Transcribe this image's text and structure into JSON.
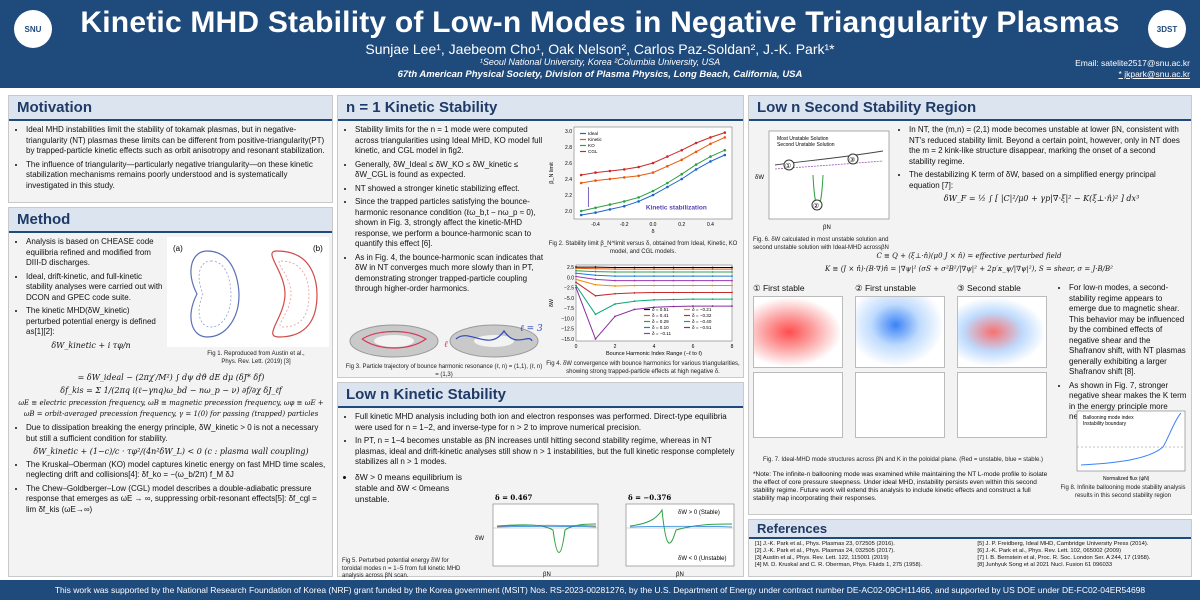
{
  "header": {
    "title": "Kinetic MHD Stability of Low-n Modes in Negative Triangularity Plasmas",
    "authors": "Sunjae Lee¹, Jaebeom Cho¹, Oak Nelson², Carlos Paz-Soldan², J.-K. Park¹*",
    "affiliations": "¹Seoul National University, Korea ²Columbia University, USA",
    "conference": "67th American Physical Society, Division of Plasma Physics, Long Beach, California, USA",
    "email_1": "Email: satelite2517@snu.ac.kr",
    "email_2": "* jkpark@snu.ac.kr",
    "right_logo": "3DST"
  },
  "motivation": {
    "title": "Motivation",
    "bullets": [
      "Ideal MHD instabilities limit the stability of tokamak plasmas, but in negative-triangularity (NT) plasmas these limits can be different from positive-triangularity(PT) by trapped-particle kinetic effects such as orbit anisotropy and resonant stabilization.",
      "The influence of triangularity—particularly negative triangularity—on these kinetic stabilization mechanisms remains poorly understood and is systematically investigated in this study."
    ]
  },
  "method": {
    "title": "Method",
    "bullets": [
      "Analysis is based on CHEASE code equilibria refined and modified from DIII-D discharges.",
      "Ideal, drift-kinetic, and full-kinetic stability analyses were carried out with DCON and GPEC code suite.",
      "The kinetic MHD(δW_kinetic) perturbed potential energy is defined as[1][2]:"
    ],
    "eq_1": "δW_kinetic + i τφ/n",
    "eq_2": "= δW_ideal − (2πχ′/M²) ∫ dψ dϑ dE dμ (δJ* δf)",
    "eq_3": "δf_kis = Σ 1/(2πq i(ℓ−γnq)ω_bd − nω_p − ν) ∂f/∂χ δJ_ℓf",
    "eq_4": "ωE ≡ electric precession frequency, ωB ≡ magnetic precession frequency, ωφ ≡ ωE + ωB = orbit-averaged precession frequency, γ = 1(0) for passing (trapped) particles",
    "bullet_4": "Due to dissipation breaking the energy principle, δW_kinetic > 0 is not a necessary but still a sufficient condition for stability.",
    "eq_5": "δW_kinetic + (1−c)/c · τφ²/(4n²δW_L) < 0 (c : plasma wall coupling)",
    "bullet_5": "The Kruskal–Oberman (KO) model captures kinetic energy on fast MHD time scales, neglecting drift and collisions[4]: δf_ko = −(ω_b/2π) f_M δJ",
    "bullet_6": "The Chew–Goldberger–Low (CGL) model describes a double-adiabatic pressure response that emerges as ωE → ∞, suppressing orbit-resonant effects[5]: δf_cgl = lim δf_kis (ωE→∞)",
    "fig1_a": "(a)",
    "fig1_b": "(b)",
    "fig1_caption": "Fig 1. Reproduced from Austin et al., Phys. Rev. Lett. (2019) [3]"
  },
  "n1": {
    "title": "n = 1 Kinetic Stability",
    "bullets": [
      "Stability limits for the n = 1 mode were computed across triangularities using Ideal MHD, KO model full kinetic, and CGL model in fig2.",
      "Generally, δW_Ideal ≤ δW_KO ≤ δW_kinetic ≤ δW_CGL is found as expected.",
      "NT showed a stronger kinetic stabilizing effect.",
      "Since the trapped particles satisfying the bounce-harmonic resonance condition (ℓω_b,t − nω_p ≈ 0), shown in Fig. 3, strongly affect the kinetic-MHD response, we perform a bounce-harmonic scan to quantify this effect [6].",
      "As in Fig. 4, the bounce-harmonic scan indicates that δW in NT converges much more slowly than in PT, demonstrating stronger trapped-particle coupling through higher-order harmonics."
    ],
    "fig2_caption": "Fig 2. Stability limit β_N^limit versus δ, obtained from Ideal, Kinetic, KO model, and CGL models.",
    "fig2_annotation": "Kinetic stabilization",
    "fig2_ylabel": "β_N limit",
    "fig2_xlabel": "δ",
    "fig3_label_left": "ℓ = 1",
    "fig3_label_right": "ℓ = 3",
    "fig3_caption": "Fig 3. Particle trajectory of bounce harmonic resonance (ℓ, n) = (1,1), (ℓ, n) = (1,3)",
    "fig4_caption": "Fig 4. δW convergence with bounce harmonics for various triangularities, showing strong trapped-particle effects at high negative δ.",
    "fig4_xlabel": "Bounce Harmonic Index Range (−ℓ to ℓ)",
    "fig4_ylabel": "δW"
  },
  "lown": {
    "title": "Low n Kinetic Stability",
    "bullets": [
      "Full kinetic MHD analysis including both ion and electron responses was performed. Direct-type equilibria were used for n = 1−2, and inverse-type for n > 2 to improve numerical precision.",
      "In PT, n = 1−4 becomes unstable as βN increases until hitting second stability regime, whereas in NT plasmas, ideal and drift-kinetic analyses still show n > 1 instabilities, but the full kinetic response completely stabilizes all n > 1 modes.",
      "δW > 0 means equilibrium is stable and δW < 0means unstable."
    ],
    "fig5_caption": "Fig 5. Perturbed potential energy δW for toroidal modes n = 1−5 from full kinetic MHD analysis across βN scan.",
    "fig5a_title": "δ = 0.467",
    "fig5b_title": "δ = −0.376",
    "fig5_stable": "δW > 0 (Stable)",
    "fig5_unstable": "δW < 0 (Unstable)",
    "fig5_xlabel": "βN",
    "fig5_ylabel": "δW"
  },
  "second": {
    "title": "Low n Second Stability Region",
    "bullets": [
      "In NT, the (m,n) = (2,1) mode becomes unstable at lower βN, consistent with NT's reduced stability limit. Beyond a certain point, however, only in NT does the m = 2 kink-like structure disappear, marking the onset of a second stability regime.",
      "The destabilizing K term of δW, based on a simplified energy principal equation [7]:"
    ],
    "eq_1": "δW_F = ½ ∫ [ |C|²/μ0 + γp|∇·ξ|² − K(ξ⊥·n̂)² ] dx³",
    "eq_2": "C ≡ Q + (ξ⊥·n̂)(μ0 J × n̂) = effective perturbed field",
    "eq_3": "K ≡ (J × n̂)·(B·∇)n̂ = |∇ψ|² (σS + σ²B²/|∇ψ|² + 2p′κ_ψ/|∇ψ|²), S = shear, σ = J·B/B²",
    "fig6_legend_1": "Most Unstable Solution",
    "fig6_legend_2": "Second Unstable Solution",
    "fig6_caption": "Fig. 6. δW calculated in most unstable solution and second unstable solution with Ideal-MHD acrossβN",
    "fig6_xlabel": "βN",
    "fig6_ylabel": "δW",
    "markers": [
      "①",
      "②",
      "③"
    ],
    "mode_titles": [
      "① First stable",
      "② First unstable",
      "③ Second stable"
    ],
    "fig7_caption": "Fig. 7. Ideal-MHD mode structures across βN and K in the poloidal plane. (Red = unstable, blue = stable.)",
    "side_bullets": [
      "For low-n modes, a second-stability regime appears to emerge due to magnetic shear. This behavior may be influenced by the combined effects of negative shear and the Shafranov shift, with NT plasmas generally exhibiting a larger Shafranov shift [8].",
      "As shown in Fig. 7, stronger negative shear makes the K term in the energy principle more negative."
    ],
    "note": "*Note: The infinite-n ballooning mode was examined while maintaining the NT L-mode profile to isolate the effect of core pressure steepness. Under ideal MHD, instability persists even within this second stability regime. Future work will extend this analysis to include kinetic effects and construct a full stability map incorporating their responses.",
    "fig8_legend_1": "Ballooning mode index",
    "fig8_legend_2": "Instability boundary",
    "fig8_xlabel": "Normalized flux (ψN)",
    "fig8_ylabel": "Stability index",
    "fig8_caption": "Fig 8. Infinite ballooning mode stability analysis results in this second stability region"
  },
  "references": {
    "title": "References",
    "items": [
      "[1] J.-K. Park et al., Phys. Plasmas 23, 072505 (2016).",
      "[2] J.-K. Park et al., Phys. Plasmas 24, 032505 (2017).",
      "[3] Austin et al., Phys. Rev. Lett. 122, 115001 (2019)",
      "[4] M. D. Kruskal and C. R. Oberman, Phys. Fluids 1, 275 (1958).",
      "[5] J. P. Freidberg, Ideal MHD, Cambridge University Press (2014).",
      "[6] J.-K. Park et al., Phys. Rev. Lett. 102, 065002 (2009)",
      "[7] I. B. Bernstein et al, Proc. R. Soc. London Ser. A 244, 17 (1958).",
      "[8] Junhyuk Song et al 2021 Nucl. Fusion 61 096033"
    ]
  },
  "footer": {
    "text": "This work was supported by the National Research Foundation of Korea (NRF) grant funded by the Korea government (MSIT) Nos. RS-2023-00281276, by the U.S. Department of Energy under contract number DE-AC02-09CH11466, and supported by US DOE under DE-FC02-04ER54698"
  },
  "chart_data": [
    {
      "type": "line",
      "x": [
        -0.5,
        -0.4,
        -0.3,
        -0.2,
        -0.1,
        0.0,
        0.1,
        0.2,
        0.3,
        0.4,
        0.5
      ],
      "series": [
        {
          "name": "Ideal",
          "values": [
            1.95,
            1.98,
            2.02,
            2.06,
            2.12,
            2.2,
            2.3,
            2.4,
            2.52,
            2.62,
            2.7
          ]
        },
        {
          "name": "Kinetic",
          "values": [
            2.35,
            2.38,
            2.4,
            2.42,
            2.44,
            2.48,
            2.56,
            2.64,
            2.74,
            2.84,
            2.92
          ]
        },
        {
          "name": "KO",
          "values": [
            2.0,
            2.04,
            2.08,
            2.12,
            2.17,
            2.25,
            2.35,
            2.46,
            2.58,
            2.68,
            2.76
          ]
        },
        {
          "name": "CGL",
          "values": [
            2.45,
            2.48,
            2.5,
            2.52,
            2.55,
            2.6,
            2.68,
            2.76,
            2.85,
            2.92,
            2.98
          ]
        }
      ],
      "xlabel": "δ",
      "ylabel": "β_N limit",
      "xticks": [
        "-0.4",
        "-0.2",
        "0.0",
        "0.2",
        "0.4"
      ],
      "yticks": [
        "2.0",
        "2.2",
        "2.4",
        "2.6",
        "2.8",
        "3.0"
      ],
      "ylim": [
        1.9,
        3.05
      ],
      "xlim": [
        -0.55,
        0.55
      ],
      "annotation": "Kinetic stabilization",
      "legend": "top-left"
    },
    {
      "type": "line",
      "x": [
        0,
        1,
        2,
        3,
        4,
        5,
        6,
        7,
        8
      ],
      "series": [
        {
          "name": "δ = 0.51",
          "values": [
            2.5,
            2.5,
            2.4,
            2.4,
            2.4,
            2.4,
            2.4,
            2.4,
            2.4
          ]
        },
        {
          "name": "δ = 0.41",
          "values": [
            2.2,
            2.1,
            2.0,
            2.0,
            2.0,
            2.0,
            2.0,
            2.0,
            2.0
          ]
        },
        {
          "name": "δ = 0.29",
          "values": [
            1.6,
            1.4,
            1.3,
            1.3,
            1.3,
            1.3,
            1.3,
            1.3,
            1.3
          ]
        },
        {
          "name": "δ = 0.10",
          "values": [
            1.0,
            0.5,
            0.3,
            0.3,
            0.3,
            0.3,
            0.3,
            0.3,
            0.3
          ]
        },
        {
          "name": "δ = −0.11",
          "values": [
            0.2,
            -0.5,
            -0.8,
            -0.8,
            -0.8,
            -0.8,
            -0.8,
            -0.8,
            -0.8
          ]
        },
        {
          "name": "δ = −0.21",
          "values": [
            -0.5,
            -1.8,
            -2.1,
            -2.0,
            -2.0,
            -2.0,
            -2.0,
            -2.0,
            -2.0
          ]
        },
        {
          "name": "δ = −0.32",
          "values": [
            -1.2,
            -4.5,
            -4.0,
            -3.8,
            -3.7,
            -3.7,
            -3.7,
            -3.7,
            -3.7
          ]
        },
        {
          "name": "δ = −0.40",
          "values": [
            -2.0,
            -9.0,
            -6.5,
            -5.8,
            -5.5,
            -5.4,
            -5.3,
            -5.3,
            -5.3
          ]
        },
        {
          "name": "δ = −0.51",
          "values": [
            -2.5,
            -15.0,
            -9.5,
            -7.8,
            -7.3,
            -7.1,
            -7.0,
            -7.0,
            -7.0
          ]
        }
      ],
      "xlabel": "Bounce Harmonic Index Range (−ℓ to ℓ)",
      "ylabel": "δW",
      "xticks": [
        "0",
        "2",
        "4",
        "6",
        "8"
      ],
      "yticks": [
        "2.5",
        "0.0",
        "−2.5",
        "−5.0",
        "−7.5",
        "−10.0",
        "−12.5",
        "−15.0"
      ],
      "ylim": [
        -15.5,
        3.0
      ],
      "legend": "lower-right"
    }
  ]
}
